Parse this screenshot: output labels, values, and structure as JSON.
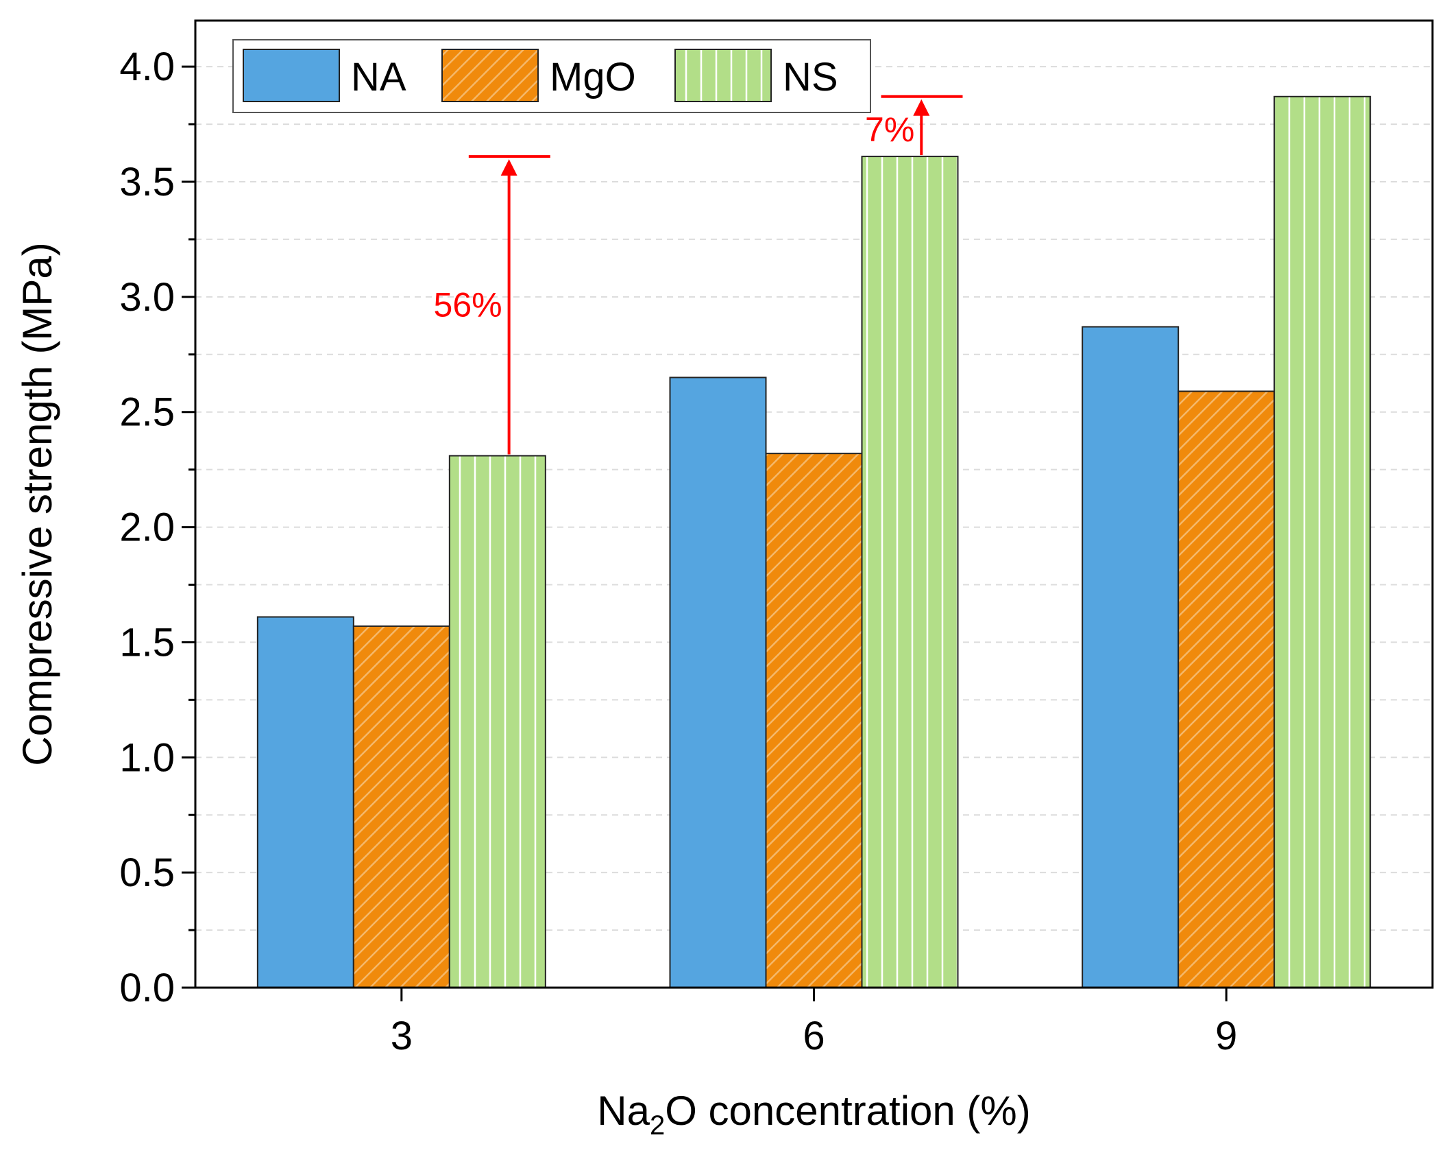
{
  "chart_data": {
    "type": "bar",
    "title": "",
    "xlabel": {
      "prefix": "Na",
      "sub": "2",
      "suffix": "O concentration (%)"
    },
    "ylabel": "Compressive strength (MPa)",
    "categories": [
      "3",
      "6",
      "9"
    ],
    "ylim": [
      0,
      4.2
    ],
    "yticks": [
      "0.0",
      "0.5",
      "1.0",
      "1.5",
      "2.0",
      "2.5",
      "3.0",
      "3.5",
      "4.0"
    ],
    "grid": true,
    "legend_position": "top-left",
    "series": [
      {
        "name": "NA",
        "values": [
          1.61,
          2.65,
          2.87
        ],
        "color": "#55a5e0",
        "pattern": "none"
      },
      {
        "name": "MgO",
        "values": [
          1.57,
          2.32,
          2.59
        ],
        "color": "#f08a0c",
        "pattern": "diagonal"
      },
      {
        "name": "NS",
        "values": [
          2.31,
          3.61,
          3.87
        ],
        "color": "#b2de88",
        "pattern": "vertical"
      }
    ],
    "annotations": [
      {
        "label": "56%",
        "category": "3",
        "from": 2.31,
        "to": 3.61
      },
      {
        "label": "7%",
        "category": "6",
        "from": 3.61,
        "to": 3.87
      }
    ],
    "annotation_color": "#ff0000"
  }
}
